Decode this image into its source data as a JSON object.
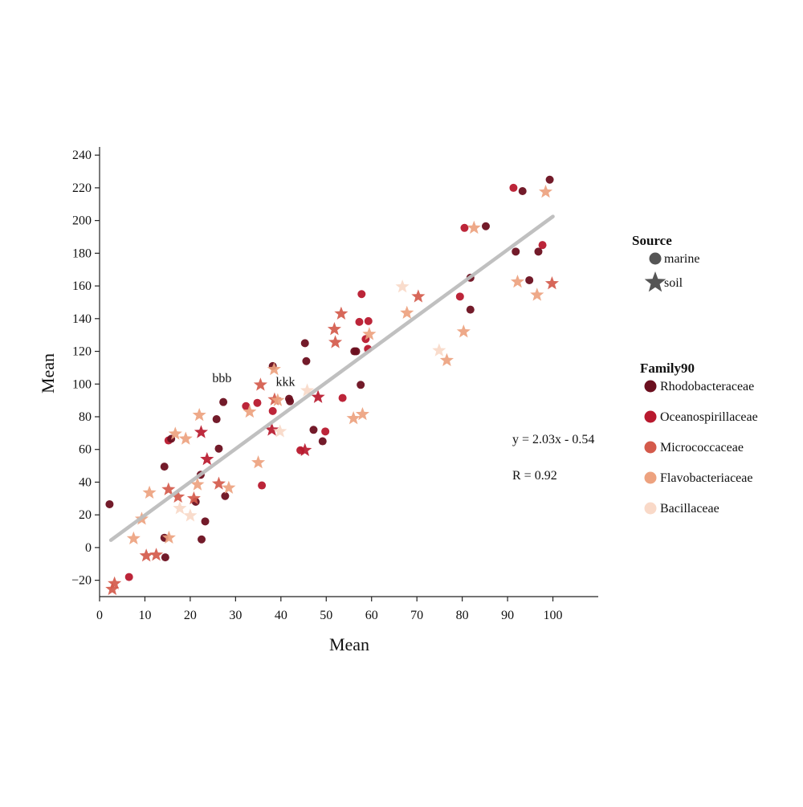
{
  "chart_data": {
    "type": "scatter",
    "xlabel": "Mean",
    "ylabel": "Mean",
    "xlim": [
      0,
      110
    ],
    "ylim": [
      -30,
      245
    ],
    "x_ticks": [
      0,
      10,
      20,
      30,
      40,
      50,
      60,
      70,
      80,
      90,
      100
    ],
    "y_ticks": [
      -20,
      0,
      20,
      40,
      60,
      80,
      100,
      120,
      140,
      160,
      180,
      200,
      220,
      240
    ],
    "grid": false,
    "legend_position": "right",
    "regression": {
      "equation": "y = 2.03x - 0.54",
      "r_label": "R = 0.92",
      "slope": 2.03,
      "intercept": -0.54,
      "x_range": [
        2.5,
        100
      ],
      "color": "#bdbdbd"
    },
    "annotations": [
      {
        "text": "bbb",
        "x": 27,
        "y": 101
      },
      {
        "text": "kkk",
        "x": 41,
        "y": 99
      }
    ],
    "legends": {
      "source": {
        "title": "Source",
        "items": [
          {
            "label": "marine",
            "shape": "circle"
          },
          {
            "label": "soil",
            "shape": "star"
          }
        ],
        "marker_color": "#555555"
      },
      "family": {
        "title": "Family90",
        "items": [
          {
            "label": "Rhodobacteraceae",
            "color": "#6b0f1f"
          },
          {
            "label": "Oceanospirillaceae",
            "color": "#b8192e"
          },
          {
            "label": "Micrococcaceae",
            "color": "#d45a4b"
          },
          {
            "label": "Flavobacteriaceae",
            "color": "#eda27f"
          },
          {
            "label": "Bacillaceae",
            "color": "#f9d9c8"
          }
        ]
      }
    },
    "points": [
      {
        "x": 2.2,
        "y": 26.5,
        "family": "Rhodobacteraceae",
        "shape": "circle"
      },
      {
        "x": 6.5,
        "y": -18,
        "family": "Oceanospirillaceae",
        "shape": "circle"
      },
      {
        "x": 14.3,
        "y": 49.5,
        "family": "Rhodobacteraceae",
        "shape": "circle"
      },
      {
        "x": 14.3,
        "y": 6,
        "family": "Rhodobacteraceae",
        "shape": "circle"
      },
      {
        "x": 14.5,
        "y": -6,
        "family": "Rhodobacteraceae",
        "shape": "circle"
      },
      {
        "x": 15.2,
        "y": 65.5,
        "family": "Oceanospirillaceae",
        "shape": "circle"
      },
      {
        "x": 15.8,
        "y": 66.5,
        "family": "Rhodobacteraceae",
        "shape": "circle"
      },
      {
        "x": 21.2,
        "y": 28,
        "family": "Rhodobacteraceae",
        "shape": "circle"
      },
      {
        "x": 22.3,
        "y": 44.5,
        "family": "Rhodobacteraceae",
        "shape": "circle"
      },
      {
        "x": 22.5,
        "y": 5,
        "family": "Rhodobacteraceae",
        "shape": "circle"
      },
      {
        "x": 23.3,
        "y": 16,
        "family": "Rhodobacteraceae",
        "shape": "circle"
      },
      {
        "x": 25.8,
        "y": 78.5,
        "family": "Rhodobacteraceae",
        "shape": "circle"
      },
      {
        "x": 26.3,
        "y": 60.5,
        "family": "Rhodobacteraceae",
        "shape": "circle"
      },
      {
        "x": 27.3,
        "y": 89,
        "family": "Rhodobacteraceae",
        "shape": "circle"
      },
      {
        "x": 27.7,
        "y": 31.5,
        "family": "Rhodobacteraceae",
        "shape": "circle"
      },
      {
        "x": 32.3,
        "y": 86.5,
        "family": "Oceanospirillaceae",
        "shape": "circle"
      },
      {
        "x": 34.8,
        "y": 88.5,
        "family": "Oceanospirillaceae",
        "shape": "circle"
      },
      {
        "x": 35.8,
        "y": 38,
        "family": "Oceanospirillaceae",
        "shape": "circle"
      },
      {
        "x": 38.2,
        "y": 111,
        "family": "Rhodobacteraceae",
        "shape": "circle"
      },
      {
        "x": 38.2,
        "y": 83.5,
        "family": "Oceanospirillaceae",
        "shape": "circle"
      },
      {
        "x": 41.8,
        "y": 91,
        "family": "Rhodobacteraceae",
        "shape": "circle"
      },
      {
        "x": 42,
        "y": 89.5,
        "family": "Rhodobacteraceae",
        "shape": "circle"
      },
      {
        "x": 44.3,
        "y": 59.5,
        "family": "Oceanospirillaceae",
        "shape": "circle"
      },
      {
        "x": 45.3,
        "y": 125,
        "family": "Rhodobacteraceae",
        "shape": "circle"
      },
      {
        "x": 45.6,
        "y": 114,
        "family": "Rhodobacteraceae",
        "shape": "circle"
      },
      {
        "x": 47.2,
        "y": 72,
        "family": "Rhodobacteraceae",
        "shape": "circle"
      },
      {
        "x": 49.2,
        "y": 65,
        "family": "Rhodobacteraceae",
        "shape": "circle"
      },
      {
        "x": 49.8,
        "y": 71,
        "family": "Oceanospirillaceae",
        "shape": "circle"
      },
      {
        "x": 53.6,
        "y": 91.5,
        "family": "Oceanospirillaceae",
        "shape": "circle"
      },
      {
        "x": 56.2,
        "y": 120,
        "family": "Rhodobacteraceae",
        "shape": "circle"
      },
      {
        "x": 56.6,
        "y": 120,
        "family": "Rhodobacteraceae",
        "shape": "circle"
      },
      {
        "x": 57.3,
        "y": 138,
        "family": "Oceanospirillaceae",
        "shape": "circle"
      },
      {
        "x": 57.6,
        "y": 99.5,
        "family": "Rhodobacteraceae",
        "shape": "circle"
      },
      {
        "x": 57.8,
        "y": 155,
        "family": "Oceanospirillaceae",
        "shape": "circle"
      },
      {
        "x": 58.7,
        "y": 127.5,
        "family": "Oceanospirillaceae",
        "shape": "circle"
      },
      {
        "x": 59.2,
        "y": 121.5,
        "family": "Oceanospirillaceae",
        "shape": "circle"
      },
      {
        "x": 59.3,
        "y": 138.5,
        "family": "Oceanospirillaceae",
        "shape": "circle"
      },
      {
        "x": 79.5,
        "y": 153.5,
        "family": "Oceanospirillaceae",
        "shape": "circle"
      },
      {
        "x": 80.5,
        "y": 195.5,
        "family": "Oceanospirillaceae",
        "shape": "circle"
      },
      {
        "x": 81.8,
        "y": 165,
        "family": "Rhodobacteraceae",
        "shape": "circle"
      },
      {
        "x": 81.8,
        "y": 145.5,
        "family": "Rhodobacteraceae",
        "shape": "circle"
      },
      {
        "x": 85.2,
        "y": 196.5,
        "family": "Rhodobacteraceae",
        "shape": "circle"
      },
      {
        "x": 91.3,
        "y": 220,
        "family": "Oceanospirillaceae",
        "shape": "circle"
      },
      {
        "x": 91.8,
        "y": 181,
        "family": "Rhodobacteraceae",
        "shape": "circle"
      },
      {
        "x": 93.3,
        "y": 218,
        "family": "Rhodobacteraceae",
        "shape": "circle"
      },
      {
        "x": 94.8,
        "y": 163.5,
        "family": "Rhodobacteraceae",
        "shape": "circle"
      },
      {
        "x": 96.8,
        "y": 181,
        "family": "Rhodobacteraceae",
        "shape": "circle"
      },
      {
        "x": 97.7,
        "y": 185,
        "family": "Oceanospirillaceae",
        "shape": "circle"
      },
      {
        "x": 99.3,
        "y": 225,
        "family": "Rhodobacteraceae",
        "shape": "circle"
      },
      {
        "x": 2.8,
        "y": -25.5,
        "family": "Micrococcaceae",
        "shape": "star"
      },
      {
        "x": 3.3,
        "y": -22,
        "family": "Micrococcaceae",
        "shape": "star"
      },
      {
        "x": 7.5,
        "y": 5.5,
        "family": "Flavobacteriaceae",
        "shape": "star"
      },
      {
        "x": 9.3,
        "y": 17.5,
        "family": "Flavobacteriaceae",
        "shape": "star"
      },
      {
        "x": 10.3,
        "y": -5,
        "family": "Micrococcaceae",
        "shape": "star"
      },
      {
        "x": 11,
        "y": 33.5,
        "family": "Flavobacteriaceae",
        "shape": "star"
      },
      {
        "x": 12.5,
        "y": -4.5,
        "family": "Micrococcaceae",
        "shape": "star"
      },
      {
        "x": 15.2,
        "y": 35.5,
        "family": "Micrococcaceae",
        "shape": "star"
      },
      {
        "x": 15.3,
        "y": 6,
        "family": "Flavobacteriaceae",
        "shape": "star"
      },
      {
        "x": 16.7,
        "y": 69.5,
        "family": "Flavobacteriaceae",
        "shape": "star"
      },
      {
        "x": 17.3,
        "y": 31,
        "family": "Micrococcaceae",
        "shape": "star"
      },
      {
        "x": 17.7,
        "y": 24,
        "family": "Bacillaceae",
        "shape": "star"
      },
      {
        "x": 19,
        "y": 66.5,
        "family": "Flavobacteriaceae",
        "shape": "star"
      },
      {
        "x": 20,
        "y": 19.5,
        "family": "Bacillaceae",
        "shape": "star"
      },
      {
        "x": 20.8,
        "y": 30,
        "family": "Micrococcaceae",
        "shape": "star"
      },
      {
        "x": 21.6,
        "y": 38.5,
        "family": "Flavobacteriaceae",
        "shape": "star"
      },
      {
        "x": 22,
        "y": 81,
        "family": "Flavobacteriaceae",
        "shape": "star"
      },
      {
        "x": 22.4,
        "y": 70.5,
        "family": "Oceanospirillaceae",
        "shape": "star"
      },
      {
        "x": 23.7,
        "y": 54,
        "family": "Oceanospirillaceae",
        "shape": "star"
      },
      {
        "x": 26.3,
        "y": 39,
        "family": "Micrococcaceae",
        "shape": "star"
      },
      {
        "x": 28.5,
        "y": 36.5,
        "family": "Flavobacteriaceae",
        "shape": "star"
      },
      {
        "x": 33.1,
        "y": 83,
        "family": "Flavobacteriaceae",
        "shape": "star"
      },
      {
        "x": 35,
        "y": 52,
        "family": "Flavobacteriaceae",
        "shape": "star"
      },
      {
        "x": 35.5,
        "y": 99.5,
        "family": "Micrococcaceae",
        "shape": "star"
      },
      {
        "x": 38,
        "y": 72,
        "family": "Oceanospirillaceae",
        "shape": "star"
      },
      {
        "x": 38.5,
        "y": 109,
        "family": "Flavobacteriaceae",
        "shape": "star"
      },
      {
        "x": 38.6,
        "y": 90.5,
        "family": "Micrococcaceae",
        "shape": "star"
      },
      {
        "x": 39.3,
        "y": 90,
        "family": "Flavobacteriaceae",
        "shape": "star"
      },
      {
        "x": 39.8,
        "y": 71,
        "family": "Bacillaceae",
        "shape": "star"
      },
      {
        "x": 45.3,
        "y": 59.5,
        "family": "Oceanospirillaceae",
        "shape": "star"
      },
      {
        "x": 45.8,
        "y": 96,
        "family": "Bacillaceae",
        "shape": "star"
      },
      {
        "x": 48.2,
        "y": 92,
        "family": "Oceanospirillaceae",
        "shape": "star"
      },
      {
        "x": 51.8,
        "y": 133.5,
        "family": "Micrococcaceae",
        "shape": "star"
      },
      {
        "x": 52,
        "y": 125.5,
        "family": "Micrococcaceae",
        "shape": "star"
      },
      {
        "x": 53.3,
        "y": 143,
        "family": "Micrococcaceae",
        "shape": "star"
      },
      {
        "x": 56,
        "y": 79,
        "family": "Flavobacteriaceae",
        "shape": "star"
      },
      {
        "x": 58,
        "y": 81.5,
        "family": "Flavobacteriaceae",
        "shape": "star"
      },
      {
        "x": 59.5,
        "y": 130.5,
        "family": "Flavobacteriaceae",
        "shape": "star"
      },
      {
        "x": 66.8,
        "y": 159.5,
        "family": "Bacillaceae",
        "shape": "star"
      },
      {
        "x": 67.8,
        "y": 143.5,
        "family": "Flavobacteriaceae",
        "shape": "star"
      },
      {
        "x": 70.3,
        "y": 153.5,
        "family": "Micrococcaceae",
        "shape": "star"
      },
      {
        "x": 74.9,
        "y": 120.5,
        "family": "Bacillaceae",
        "shape": "star"
      },
      {
        "x": 76.6,
        "y": 114.5,
        "family": "Flavobacteriaceae",
        "shape": "star"
      },
      {
        "x": 80.3,
        "y": 132,
        "family": "Flavobacteriaceae",
        "shape": "star"
      },
      {
        "x": 82.6,
        "y": 195.5,
        "family": "Flavobacteriaceae",
        "shape": "star"
      },
      {
        "x": 92.2,
        "y": 162.5,
        "family": "Flavobacteriaceae",
        "shape": "star"
      },
      {
        "x": 96.5,
        "y": 154.5,
        "family": "Flavobacteriaceae",
        "shape": "star"
      },
      {
        "x": 98.4,
        "y": 217.5,
        "family": "Flavobacteriaceae",
        "shape": "star"
      },
      {
        "x": 99.8,
        "y": 161.5,
        "family": "Micrococcaceae",
        "shape": "star"
      }
    ]
  }
}
